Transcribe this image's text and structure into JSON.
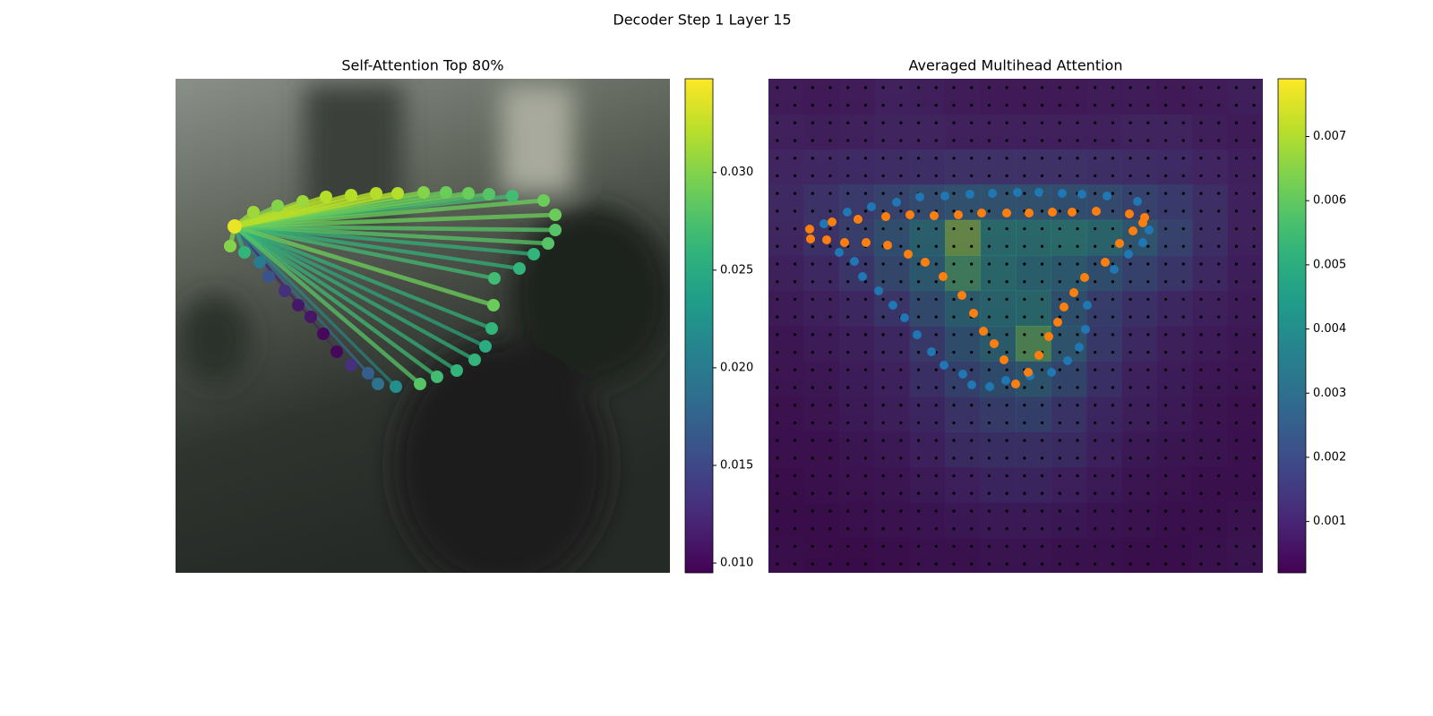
{
  "title": "Decoder Step 1 Layer 15",
  "chart_data": [
    {
      "type": "attention-graph",
      "title": "Self-Attention Top 80%",
      "colormap": "viridis",
      "query": 0,
      "x": [
        66,
        87,
        114,
        142,
        168,
        196,
        224,
        248,
        277,
        302,
        327,
        350,
        376,
        411,
        424,
        424,
        416,
        400,
        384,
        356,
        355,
        353,
        346,
        334,
        314,
        292,
        273,
        246,
        226,
        215,
        196,
        180,
        165,
        151,
        137,
        122,
        104,
        94,
        77,
        61
      ],
      "y": [
        165,
        149,
        142,
        137,
        132,
        130,
        128,
        128,
        127,
        127,
        128,
        129,
        131,
        136,
        152,
        169,
        184,
        196,
        212,
        223,
        253,
        279,
        299,
        314,
        326,
        333,
        341,
        344,
        341,
        329,
        320,
        305,
        285,
        266,
        253,
        237,
        221,
        205,
        194,
        187
      ],
      "values": [
        0.034,
        0.031,
        0.03,
        0.031,
        0.032,
        0.032,
        0.032,
        0.032,
        0.03,
        0.029,
        0.029,
        0.028,
        0.027,
        0.029,
        0.029,
        0.028,
        0.028,
        0.026,
        0.026,
        0.027,
        0.029,
        0.026,
        0.025,
        0.026,
        0.026,
        0.027,
        0.028,
        0.022,
        0.019,
        0.017,
        0.013,
        0.01,
        0.01,
        0.011,
        0.011,
        0.013,
        0.016,
        0.02,
        0.026,
        0.03
      ],
      "clim": [
        0.0095,
        0.0348
      ],
      "cticks": [
        {
          "value": 0.01,
          "label": "0.010"
        },
        0.015,
        {
          "value": 0.02,
          "label": "0.020"
        },
        0.025,
        {
          "value": 0.03,
          "label": "0.030"
        }
      ]
    },
    {
      "type": "heatmap",
      "title": "Averaged Multihead Attention",
      "colormap": "viridis",
      "heatmap": [
        [
          0.0006,
          0.0005,
          0.0006,
          0.0008,
          0.0007,
          0.0006,
          0.0005,
          0.0005,
          0.0005,
          0.0006,
          0.0006,
          0.0005,
          0.0006,
          0.0007
        ],
        [
          0.0008,
          0.0007,
          0.0008,
          0.0009,
          0.0009,
          0.0008,
          0.0008,
          0.0008,
          0.0008,
          0.0008,
          0.0009,
          0.0009,
          0.0007,
          0.0006
        ],
        [
          0.001,
          0.0011,
          0.0012,
          0.0013,
          0.0014,
          0.0015,
          0.0015,
          0.0015,
          0.0015,
          0.0014,
          0.0013,
          0.0012,
          0.001,
          0.0008
        ],
        [
          0.0012,
          0.0016,
          0.002,
          0.0024,
          0.0028,
          0.0032,
          0.0032,
          0.0032,
          0.003,
          0.0028,
          0.0024,
          0.002,
          0.0014,
          0.0009
        ],
        [
          0.0011,
          0.0016,
          0.0022,
          0.003,
          0.004,
          0.0065,
          0.0045,
          0.0045,
          0.0046,
          0.0042,
          0.0034,
          0.0024,
          0.0014,
          0.0009
        ],
        [
          0.0009,
          0.0012,
          0.0018,
          0.0026,
          0.0036,
          0.0056,
          0.0044,
          0.004,
          0.0036,
          0.003,
          0.0024,
          0.0018,
          0.0012,
          0.0008
        ],
        [
          0.0007,
          0.0009,
          0.0012,
          0.0018,
          0.0028,
          0.0038,
          0.0042,
          0.0044,
          0.0032,
          0.0022,
          0.0016,
          0.0012,
          0.0009,
          0.0007
        ],
        [
          0.0005,
          0.0007,
          0.0009,
          0.0012,
          0.002,
          0.003,
          0.0038,
          0.006,
          0.0034,
          0.002,
          0.0013,
          0.0009,
          0.0007,
          0.0006
        ],
        [
          0.0005,
          0.0006,
          0.0008,
          0.001,
          0.0016,
          0.0024,
          0.003,
          0.0034,
          0.0026,
          0.0016,
          0.001,
          0.0008,
          0.0006,
          0.0005
        ],
        [
          0.0004,
          0.0005,
          0.0007,
          0.0009,
          0.0012,
          0.0018,
          0.0022,
          0.0024,
          0.0018,
          0.0012,
          0.0009,
          0.0007,
          0.0005,
          0.0004
        ],
        [
          0.0004,
          0.0004,
          0.0006,
          0.0007,
          0.001,
          0.0014,
          0.0016,
          0.0016,
          0.0014,
          0.001,
          0.0007,
          0.0006,
          0.0005,
          0.0004
        ],
        [
          0.0003,
          0.0004,
          0.0005,
          0.0006,
          0.0008,
          0.001,
          0.0012,
          0.0012,
          0.001,
          0.0008,
          0.0006,
          0.0005,
          0.0004,
          0.0004
        ],
        [
          0.0003,
          0.0003,
          0.0004,
          0.0005,
          0.0006,
          0.0007,
          0.0008,
          0.0008,
          0.0007,
          0.0006,
          0.0005,
          0.0004,
          0.0004,
          0.0005
        ],
        [
          0.0004,
          0.0003,
          0.0003,
          0.0004,
          0.0005,
          0.0005,
          0.0006,
          0.0006,
          0.0005,
          0.0005,
          0.0004,
          0.0004,
          0.0005,
          0.0006
        ]
      ],
      "series": [
        {
          "color": "#1f77b4",
          "x": [
            412,
            378,
            350,
            328,
            302,
            278,
            250,
            225,
            197,
            169,
            143,
            115,
            88,
            62,
            79,
            96,
            105,
            123,
            139,
            152,
            166,
            182,
            196,
            217,
            227,
            247,
            265,
            292,
            316,
            334,
            347,
            354,
            356,
            386,
            402,
            418,
            425
          ],
          "y": [
            137,
            131,
            129,
            128,
            127,
            127,
            128,
            129,
            131,
            132,
            138,
            143,
            149,
            162,
            194,
            204,
            221,
            237,
            253,
            267,
            286,
            305,
            320,
            330,
            342,
            344,
            337,
            332,
            328,
            315,
            300,
            280,
            253,
            213,
            196,
            183,
            169
          ]
        },
        {
          "color": "#ff7f0e",
          "x": [
            46,
            71,
            100,
            131,
            158,
            185,
            212,
            238,
            266,
            291,
            317,
            339,
            366,
            403,
            420,
            418,
            407,
            392,
            376,
            353,
            341,
            330,
            323,
            313,
            302,
            290,
            276,
            263,
            252,
            240,
            229,
            216,
            195,
            175,
            156,
            133,
            109,
            85,
            65,
            47
          ],
          "y": [
            168,
            160,
            157,
            154,
            152,
            153,
            152,
            150,
            150,
            150,
            149,
            149,
            148,
            151,
            155,
            161,
            170,
            184,
            205,
            222,
            239,
            255,
            272,
            288,
            309,
            328,
            341,
            314,
            296,
            282,
            262,
            242,
            221,
            205,
            196,
            186,
            183,
            183,
            180,
            179
          ]
        }
      ],
      "clim": [
        0.0002,
        0.0079
      ],
      "cticks": [
        0.001,
        0.002,
        0.003,
        0.004,
        0.005,
        0.006,
        0.007
      ]
    }
  ]
}
